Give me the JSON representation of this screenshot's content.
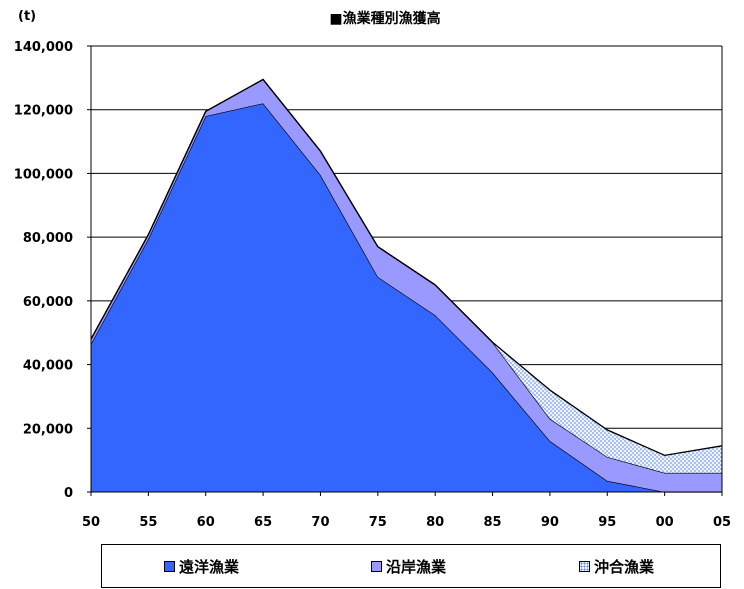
{
  "chart_data": {
    "type": "area",
    "stacked": true,
    "title": "■漁業種別漁獲高",
    "unit_label": "(t)",
    "categories": [
      "50",
      "55",
      "60",
      "65",
      "70",
      "75",
      "80",
      "85",
      "90",
      "95",
      "00",
      "05"
    ],
    "ylim": [
      0,
      140000
    ],
    "yticks": [
      "0",
      "20,000",
      "40,000",
      "60,000",
      "80,000",
      "100,000",
      "120,000",
      "140,000"
    ],
    "grid": true,
    "legend_position": "bottom",
    "series": [
      {
        "name": "遠洋漁業",
        "color": "#3366ff",
        "values": [
          46500,
          79500,
          118000,
          122000,
          99500,
          67500,
          55500,
          37500,
          16000,
          3500,
          0,
          0
        ]
      },
      {
        "name": "沿岸漁業",
        "color": "#9999ff",
        "values": [
          1500,
          1300,
          1500,
          7500,
          7500,
          9500,
          9500,
          9500,
          7000,
          7500,
          6000,
          6000
        ]
      },
      {
        "name": "沖合漁業",
        "color": "#6699ff",
        "pattern": "dots",
        "values": [
          0,
          0,
          0,
          0,
          0,
          0,
          0,
          0,
          9000,
          8500,
          5500,
          8500
        ]
      }
    ]
  }
}
